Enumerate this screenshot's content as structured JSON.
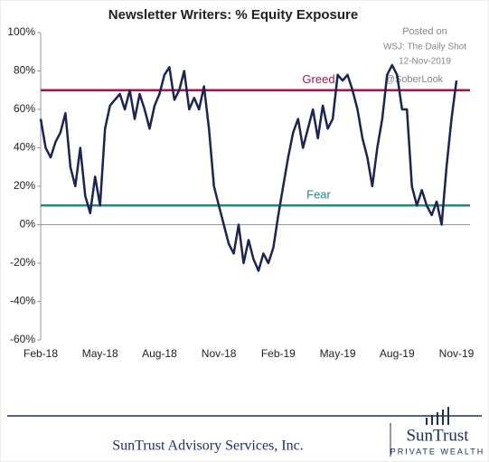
{
  "chart_data": {
    "type": "line",
    "title": "Newsletter Writers: % Equity Exposure",
    "annotations": [
      "Posted on",
      "WSJ: The Daily Shot",
      "12-Nov-2019",
      "@SoberLook"
    ],
    "categories": [
      "Feb-18",
      null,
      null,
      null,
      null,
      null,
      null,
      null,
      null,
      null,
      null,
      null,
      "May-18",
      null,
      null,
      null,
      null,
      null,
      null,
      null,
      null,
      null,
      null,
      null,
      "Aug-18",
      null,
      null,
      null,
      null,
      null,
      null,
      null,
      null,
      null,
      null,
      null,
      "Nov-18",
      null,
      null,
      null,
      null,
      null,
      null,
      null,
      null,
      null,
      null,
      null,
      "Feb-19",
      null,
      null,
      null,
      null,
      null,
      null,
      null,
      null,
      null,
      null,
      null,
      "May-19",
      null,
      null,
      null,
      null,
      null,
      null,
      null,
      null,
      null,
      null,
      null,
      "Aug-19",
      null,
      null,
      null,
      null,
      null,
      null,
      null,
      null,
      null,
      null,
      null,
      "Nov-19"
    ],
    "series": [
      {
        "name": "% Equity Exposure",
        "color": "#1b2452",
        "values": [
          55,
          40,
          35,
          43,
          48,
          58,
          30,
          20,
          40,
          15,
          6,
          25,
          10,
          50,
          62,
          65,
          68,
          60,
          70,
          55,
          68,
          60,
          50,
          62,
          68,
          78,
          82,
          65,
          70,
          80,
          60,
          66,
          60,
          72,
          50,
          20,
          10,
          0,
          -10,
          -15,
          0,
          -20,
          -8,
          -18,
          -24,
          -15,
          -20,
          -12,
          5,
          20,
          35,
          48,
          55,
          40,
          50,
          60,
          45,
          62,
          50,
          55,
          78,
          75,
          78,
          70,
          60,
          45,
          35,
          20,
          40,
          55,
          78,
          83,
          78,
          60,
          60,
          20,
          10,
          18,
          10,
          5,
          12,
          0,
          30,
          55,
          75
        ]
      }
    ],
    "reference_lines": [
      {
        "label": "Greed",
        "value": 70,
        "color": "#a3154f"
      },
      {
        "label": "Fear",
        "value": 10,
        "color": "#1f8a8a"
      }
    ],
    "ylim": [
      -60,
      100
    ],
    "yticks": [
      {
        "value": -60,
        "label": "-60%"
      },
      {
        "value": -40,
        "label": "-40%"
      },
      {
        "value": -20,
        "label": "-20%"
      },
      {
        "value": 0,
        "label": "0%"
      },
      {
        "value": 20,
        "label": "20%"
      },
      {
        "value": 40,
        "label": "40%"
      },
      {
        "value": 60,
        "label": "60%"
      },
      {
        "value": 80,
        "label": "80%"
      },
      {
        "value": 100,
        "label": "100%"
      }
    ],
    "grid": false,
    "footer": "SunTrust Advisory Services, Inc.",
    "logo": {
      "name": "SunTrust",
      "tagline": "PRIVATE WEALTH"
    }
  }
}
